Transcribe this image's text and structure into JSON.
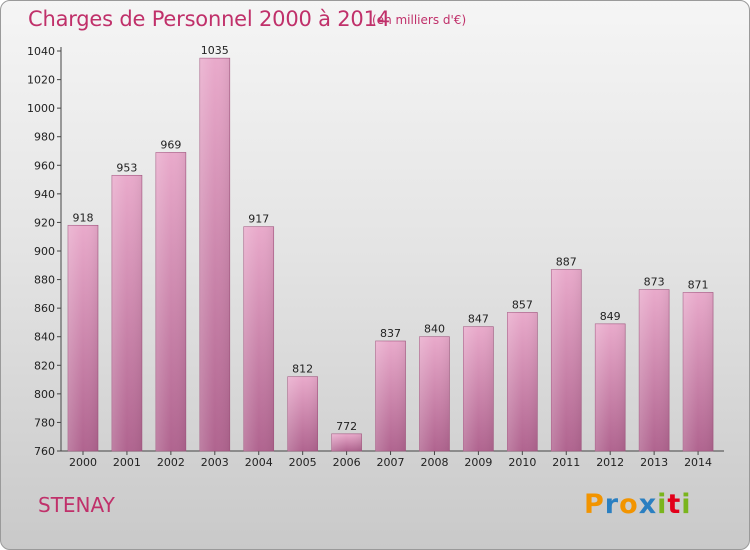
{
  "title": "Charges de Personnel 2000 à 2014",
  "subtitle": "(en milliers d'€)",
  "commune": "STENAY",
  "logo": {
    "letters": [
      "P",
      "r",
      "o",
      "x",
      "i",
      "t",
      "i"
    ],
    "colors": [
      "#f29400",
      "#2a7fc1",
      "#f29400",
      "#2a7fc1",
      "#7ab51d",
      "#e2001a",
      "#7ab51d"
    ]
  },
  "colors": {
    "accent": "#c0306a",
    "bar_top": "#e9aacb",
    "bar_bottom": "#b0648f"
  },
  "chart_data": {
    "type": "bar",
    "categories": [
      "2000",
      "2001",
      "2002",
      "2003",
      "2004",
      "2005",
      "2006",
      "2007",
      "2008",
      "2009",
      "2010",
      "2011",
      "2012",
      "2013",
      "2014"
    ],
    "values": [
      918,
      953,
      969,
      1035,
      917,
      812,
      772,
      837,
      840,
      847,
      857,
      887,
      849,
      873,
      871
    ],
    "value_labels": [
      "918",
      "953",
      "969",
      "1035",
      "917",
      "812",
      "772",
      "837",
      "840",
      "847",
      "857",
      "887",
      "849",
      "873",
      "871"
    ],
    "ylim": [
      760,
      1040
    ],
    "yticks": [
      760,
      780,
      800,
      820,
      840,
      860,
      880,
      900,
      920,
      940,
      960,
      980,
      1000,
      1020,
      1040
    ],
    "ytick_labels": [
      "760",
      "780",
      "800",
      "820",
      "840",
      "860",
      "880",
      "900",
      "920",
      "940",
      "960",
      "980",
      "1000",
      "1020",
      "1040"
    ],
    "grid": false
  }
}
